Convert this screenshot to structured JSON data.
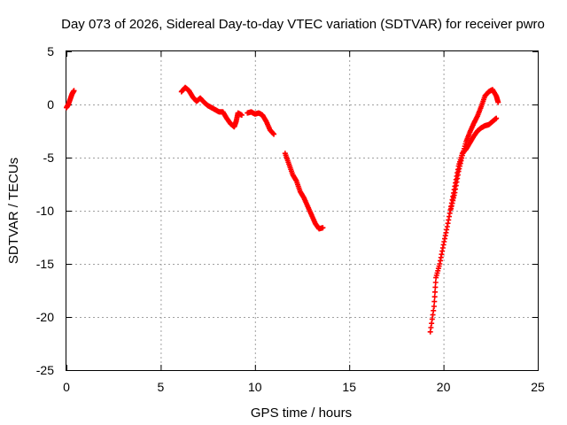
{
  "chart_data": {
    "type": "scatter",
    "title": "Day 073 of 2026, Sidereal Day-to-day VTEC variation (SDTVAR) for receiver pwro",
    "xlabel": "GPS time / hours",
    "ylabel": "SDTVAR / TECUs",
    "xlim": [
      0,
      25
    ],
    "ylim": [
      -25,
      5
    ],
    "x_ticks": [
      0,
      5,
      10,
      15,
      20,
      25
    ],
    "y_ticks": [
      5,
      0,
      -5,
      -10,
      -15,
      -20,
      -25
    ],
    "x_tick_labels": [
      "0",
      "5",
      "10",
      "15",
      "20",
      "25"
    ],
    "y_tick_labels": [
      "5",
      "0",
      "-5",
      "-10",
      "-15",
      "-20",
      "-25"
    ],
    "grid": true,
    "marker": "+",
    "series": [
      {
        "name": "SDTVAR",
        "color": "#ff0000",
        "segments": [
          [
            [
              0.0,
              -0.3
            ],
            [
              0.1,
              0.0
            ],
            [
              0.2,
              0.5
            ],
            [
              0.3,
              1.0
            ],
            [
              0.4,
              1.3
            ]
          ],
          [
            [
              6.1,
              1.2
            ],
            [
              6.3,
              1.6
            ],
            [
              6.5,
              1.3
            ],
            [
              6.7,
              0.7
            ],
            [
              6.9,
              0.3
            ],
            [
              7.1,
              0.6
            ],
            [
              7.3,
              0.2
            ],
            [
              7.5,
              -0.1
            ],
            [
              7.7,
              -0.3
            ],
            [
              7.9,
              -0.5
            ],
            [
              8.1,
              -0.7
            ],
            [
              8.3,
              -0.7
            ],
            [
              8.5,
              -1.3
            ],
            [
              8.7,
              -1.8
            ],
            [
              8.9,
              -2.1
            ],
            [
              9.0,
              -1.6
            ],
            [
              9.1,
              -0.8
            ],
            [
              9.3,
              -1.0
            ]
          ],
          [
            [
              9.6,
              -0.8
            ],
            [
              9.8,
              -0.7
            ],
            [
              10.0,
              -0.9
            ],
            [
              10.2,
              -0.8
            ],
            [
              10.4,
              -1.0
            ],
            [
              10.6,
              -1.6
            ],
            [
              10.8,
              -2.4
            ],
            [
              11.0,
              -2.8
            ]
          ],
          [
            [
              11.6,
              -4.6
            ],
            [
              11.8,
              -5.6
            ],
            [
              12.0,
              -6.6
            ],
            [
              12.2,
              -7.2
            ],
            [
              12.4,
              -8.2
            ],
            [
              12.6,
              -8.8
            ],
            [
              12.8,
              -9.6
            ],
            [
              13.0,
              -10.4
            ],
            [
              13.2,
              -11.2
            ],
            [
              13.4,
              -11.7
            ],
            [
              13.6,
              -11.6
            ]
          ],
          [
            [
              19.3,
              -21.4
            ],
            [
              19.5,
              -19.0
            ],
            [
              19.6,
              -16.3
            ],
            [
              19.8,
              -15.0
            ],
            [
              20.0,
              -13.2
            ],
            [
              20.2,
              -11.5
            ],
            [
              20.4,
              -9.6
            ],
            [
              20.6,
              -7.7
            ],
            [
              20.8,
              -5.8
            ],
            [
              21.0,
              -4.6
            ],
            [
              21.2,
              -4.2
            ],
            [
              21.4,
              -3.6
            ],
            [
              21.6,
              -3.0
            ],
            [
              21.8,
              -2.5
            ],
            [
              22.0,
              -2.2
            ],
            [
              22.2,
              -2.0
            ],
            [
              22.4,
              -1.9
            ],
            [
              22.6,
              -1.6
            ],
            [
              22.8,
              -1.3
            ]
          ],
          [
            [
              20.4,
              -9.8
            ],
            [
              20.6,
              -8.3
            ],
            [
              20.8,
              -6.3
            ],
            [
              21.0,
              -4.8
            ],
            [
              21.2,
              -3.5
            ],
            [
              21.4,
              -2.6
            ],
            [
              21.6,
              -1.8
            ],
            [
              21.8,
              -1.1
            ],
            [
              22.0,
              -0.2
            ],
            [
              22.2,
              0.8
            ],
            [
              22.4,
              1.2
            ],
            [
              22.6,
              1.4
            ],
            [
              22.8,
              0.8
            ],
            [
              22.9,
              0.2
            ]
          ]
        ]
      }
    ]
  }
}
